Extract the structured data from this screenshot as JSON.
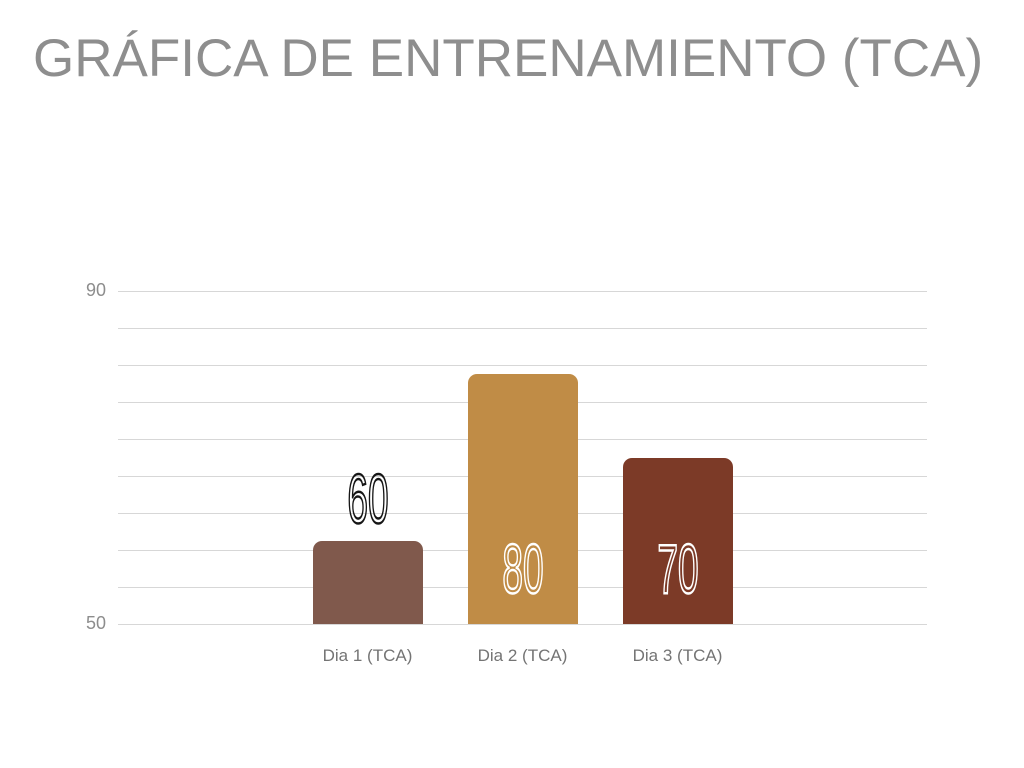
{
  "slide": {
    "title": "GRÁFICA DE ENTRENAMIENTO (TCA)",
    "title_color": "#8e8e8e",
    "background_color": "#ffffff"
  },
  "chart_data": {
    "type": "bar",
    "title": "GRÁFICA DE ENTRENAMIENTO (TCA)",
    "categories": [
      "Dia 1 (TCA)",
      "Dia 2 (TCA)",
      "Dia 3 (TCA)"
    ],
    "values": [
      60,
      80,
      70
    ],
    "bar_colors": [
      "#80594C",
      "#C08C46",
      "#7C3A27"
    ],
    "value_labels": [
      {
        "text": "60",
        "position": "above",
        "stroke_color": "#161616"
      },
      {
        "text": "80",
        "position": "inside",
        "stroke_color": "#ffffff"
      },
      {
        "text": "70",
        "position": "inside",
        "stroke_color": "#ffffff"
      }
    ],
    "xlabel": "",
    "ylabel": "",
    "ylim": [
      50,
      90
    ],
    "y_ticks": [
      {
        "label": "90",
        "grid_index": 0
      },
      {
        "label": "50",
        "grid_index": 9
      }
    ],
    "gridline_count": 10,
    "grid": true,
    "legend": false,
    "gridline_color": "#d7d7d7",
    "tick_label_color": "#8d8d8d",
    "category_label_color": "#747474"
  }
}
